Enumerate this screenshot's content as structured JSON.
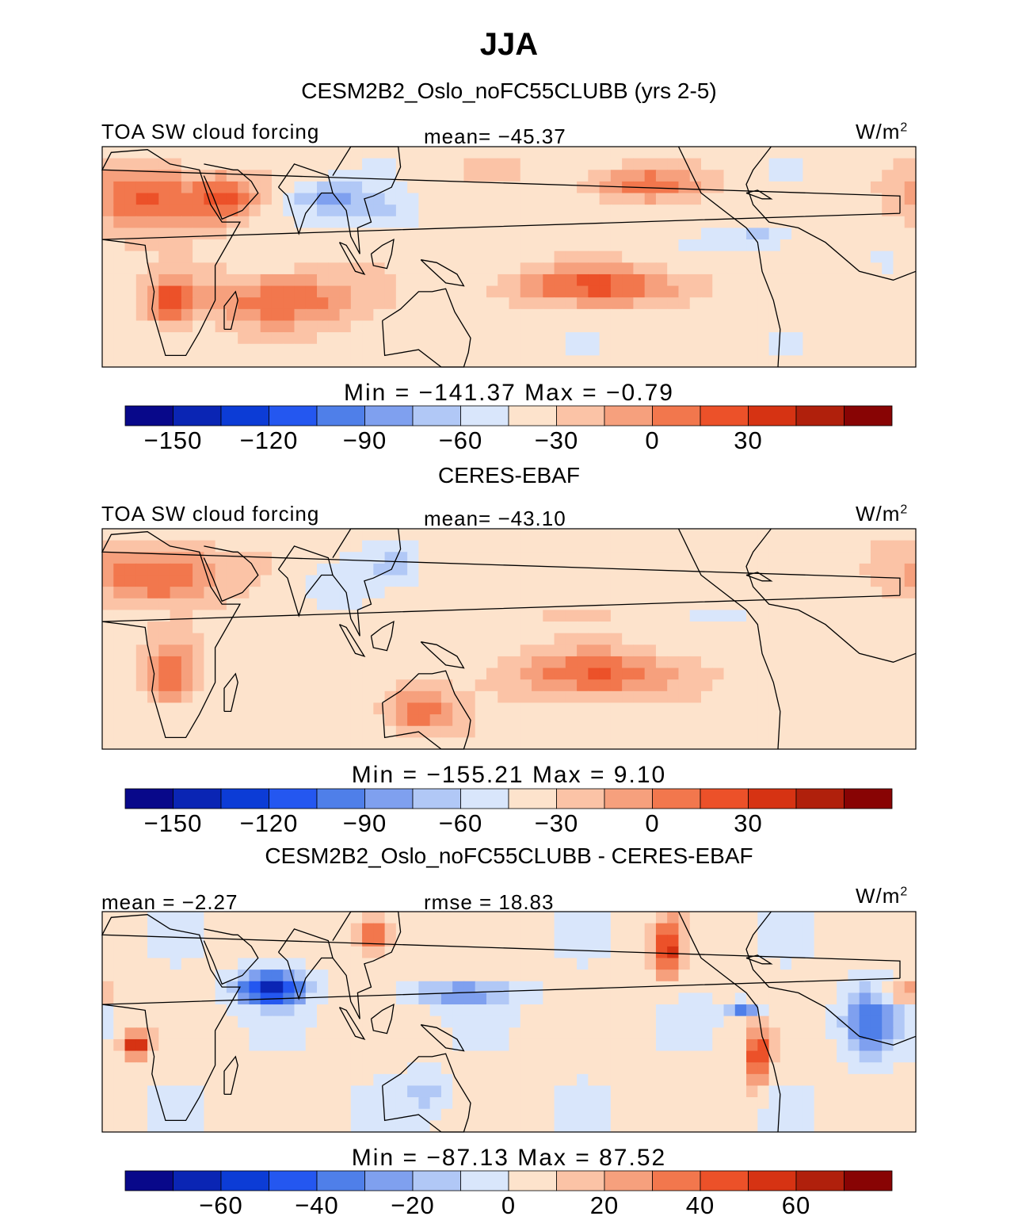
{
  "header": {
    "season": "JJA"
  },
  "colors": {
    "ocean_white": "#ffffff",
    "coast": "#000000"
  },
  "chart_data": [
    {
      "type": "heatmap",
      "title": "CESM2B2_Oslo_noFC55CLUBB (yrs 2-5)",
      "variable": "TOA SW cloud forcing",
      "units": "W/m",
      "units_sup": "2",
      "stat_left": "",
      "stat_center": "mean=  −45.37",
      "minmax": "Min  =  −141.37  Max  =   −0.79",
      "colorbar": {
        "levels": [
          -165,
          -150,
          -135,
          -120,
          -105,
          -90,
          -75,
          -60,
          -45,
          -30,
          -15,
          0,
          15,
          30,
          45,
          60
        ],
        "ticks": [
          -150,
          -120,
          -90,
          -60,
          -30,
          0,
          30
        ],
        "tick_labels": [
          "−150",
          "−120",
          "−90",
          "−60",
          "−30",
          "0",
          "30"
        ],
        "colors": [
          "#08088a",
          "#0a25b4",
          "#0c3cd6",
          "#2457f0",
          "#4f7fe9",
          "#7fa0ef",
          "#b1c8f6",
          "#d9e6fb",
          "#fde3cc",
          "#fbc3a6",
          "#f6a07d",
          "#f2774d",
          "#ec5129",
          "#d63313",
          "#b0200c",
          "#880404"
        ]
      },
      "field": {
        "base": -40,
        "features": [
          {
            "lon": 10,
            "lat": 20,
            "rx": 25,
            "ry": 12,
            "v": 25
          },
          {
            "lon": 45,
            "lat": 20,
            "rx": 15,
            "ry": 8,
            "v": 20
          },
          {
            "lon": 90,
            "lat": 20,
            "rx": 20,
            "ry": 6,
            "v": -80
          },
          {
            "lon": 115,
            "lat": 15,
            "rx": 15,
            "ry": 6,
            "v": -60
          },
          {
            "lon": 140,
            "lat": 5,
            "rx": 50,
            "ry": 6,
            "v": -35
          },
          {
            "lon": 210,
            "lat": -10,
            "rx": 40,
            "ry": 7,
            "v": 25
          },
          {
            "lon": 280,
            "lat": 7,
            "rx": 15,
            "ry": 4,
            "v": -70
          },
          {
            "lon": 70,
            "lat": -15,
            "rx": 40,
            "ry": 10,
            "v": 15
          },
          {
            "lon": 20,
            "lat": -15,
            "rx": 10,
            "ry": 8,
            "v": 25
          },
          {
            "lon": 170,
            "lat": 30,
            "rx": 30,
            "ry": 5,
            "v": -30
          },
          {
            "lon": 230,
            "lat": 25,
            "rx": 25,
            "ry": 6,
            "v": 15
          }
        ]
      }
    },
    {
      "type": "heatmap",
      "title": "CERES-EBAF",
      "variable": "TOA SW cloud forcing",
      "units": "W/m",
      "units_sup": "2",
      "stat_left": "",
      "stat_center": "mean=  −43.10",
      "minmax": "Min  =  −155.21  Max  =    9.10",
      "colorbar": {
        "levels": [
          -165,
          -150,
          -135,
          -120,
          -105,
          -90,
          -75,
          -60,
          -45,
          -30,
          -15,
          0,
          15,
          30,
          45,
          60
        ],
        "ticks": [
          -150,
          -120,
          -90,
          -60,
          -30,
          0,
          30
        ],
        "tick_labels": [
          "−150",
          "−120",
          "−90",
          "−60",
          "−30",
          "0",
          "30"
        ],
        "colors": [
          "#08088a",
          "#0a25b4",
          "#0c3cd6",
          "#2457f0",
          "#4f7fe9",
          "#7fa0ef",
          "#b1c8f6",
          "#d9e6fb",
          "#fde3cc",
          "#fbc3a6",
          "#f6a07d",
          "#f2774d",
          "#ec5129",
          "#d63313",
          "#b0200c",
          "#880404"
        ]
      },
      "field": {
        "base": -38,
        "features": [
          {
            "lon": 15,
            "lat": 22,
            "rx": 30,
            "ry": 10,
            "v": 25
          },
          {
            "lon": 95,
            "lat": 18,
            "rx": 15,
            "ry": 8,
            "v": -60
          },
          {
            "lon": 120,
            "lat": 25,
            "rx": 10,
            "ry": 6,
            "v": -70
          },
          {
            "lon": 180,
            "lat": 8,
            "rx": 60,
            "ry": 3,
            "v": -30
          },
          {
            "lon": 270,
            "lat": 8,
            "rx": 20,
            "ry": 3,
            "v": -50
          },
          {
            "lon": 210,
            "lat": -12,
            "rx": 40,
            "ry": 8,
            "v": 20
          },
          {
            "lon": 130,
            "lat": -25,
            "rx": 15,
            "ry": 8,
            "v": 20
          },
          {
            "lon": 20,
            "lat": -12,
            "rx": 12,
            "ry": 10,
            "v": 20
          },
          {
            "lon": 5,
            "lat": 8,
            "rx": 25,
            "ry": 3,
            "v": -45
          }
        ]
      }
    },
    {
      "type": "heatmap",
      "title": "CESM2B2_Oslo_noFC55CLUBB - CERES-EBAF",
      "variable": "",
      "units": "W/m",
      "units_sup": "2",
      "stat_left": "mean  =   −2.27",
      "stat_center": "rmse  =   18.83",
      "minmax": "Min  =  −87.13  Max  =   87.52",
      "colorbar": {
        "levels": [
          -80,
          -70,
          -60,
          -50,
          -40,
          -30,
          -20,
          -10,
          0,
          10,
          20,
          30,
          40,
          50,
          60,
          70,
          80
        ],
        "ticks": [
          -60,
          -40,
          -20,
          0,
          20,
          40,
          60
        ],
        "tick_labels": [
          "−60",
          "−40",
          "−20",
          "0",
          "20",
          "40",
          "60"
        ],
        "colors": [
          "#08088a",
          "#0a25b4",
          "#0c3cd6",
          "#2457f0",
          "#4f7fe9",
          "#7fa0ef",
          "#b1c8f6",
          "#d9e6fb",
          "#fde3cc",
          "#fbc3a6",
          "#f6a07d",
          "#f2774d",
          "#ec5129",
          "#d63313",
          "#b0200c",
          "#880404"
        ]
      },
      "field": {
        "base": 3,
        "features": [
          {
            "lon": 65,
            "lat": 12,
            "rx": 15,
            "ry": 6,
            "v": -70
          },
          {
            "lon": 110,
            "lat": 30,
            "rx": 8,
            "ry": 7,
            "v": 55
          },
          {
            "lon": 240,
            "lat": 25,
            "rx": 6,
            "ry": 10,
            "v": 60
          },
          {
            "lon": 5,
            "lat": -8,
            "rx": 6,
            "ry": 4,
            "v": 70
          },
          {
            "lon": 280,
            "lat": -12,
            "rx": 5,
            "ry": 10,
            "v": 60
          },
          {
            "lon": 275,
            "lat": 5,
            "rx": 8,
            "ry": 2,
            "v": -55
          },
          {
            "lon": 330,
            "lat": 0,
            "rx": 12,
            "ry": 12,
            "v": -40
          },
          {
            "lon": 150,
            "lat": 10,
            "rx": 25,
            "ry": 4,
            "v": -30
          },
          {
            "lon": 135,
            "lat": -25,
            "rx": 12,
            "ry": 8,
            "v": -15
          },
          {
            "lon": 345,
            "lat": 10,
            "rx": 10,
            "ry": 3,
            "v": 45
          }
        ]
      }
    }
  ]
}
